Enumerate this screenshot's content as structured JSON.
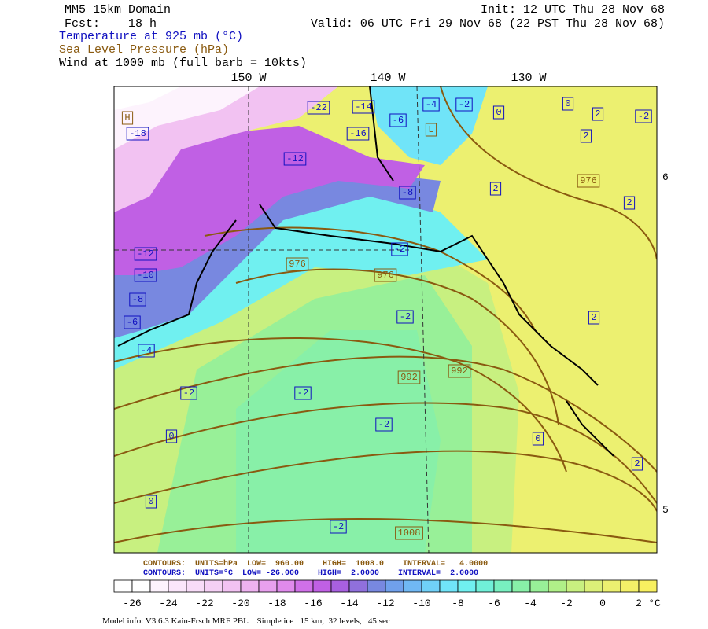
{
  "header": {
    "model": "MM5 15km Domain",
    "init": "Init: 12 UTC Thu 28 Nov 68",
    "fcst": "Fcst:    18 h",
    "valid": "Valid: 06 UTC Fri 29 Nov 68 (22 PST Thu 28 Nov 68)"
  },
  "legend": {
    "temperature": "Temperature at 925 mb (°C)",
    "pressure": "Sea Level Pressure (hPa)",
    "wind": "Wind at 1000 mb (full barb = 10kts)"
  },
  "longitude_labels": [
    "150 W",
    "140 W",
    "130 W"
  ],
  "latitude_labels": [
    "6",
    "5"
  ],
  "map": {
    "temperature_labels": [
      "-22",
      "-14",
      "-4",
      "-2",
      "0",
      "0",
      "2",
      "-2",
      "-6",
      "-16",
      "-18",
      "-12",
      "2",
      "2",
      "2",
      "-8",
      "-12",
      "-10",
      "-8",
      "-6",
      "-4",
      "-2",
      "-2",
      "2",
      "-2",
      "-2",
      "-2",
      "0",
      "0",
      "2",
      "0",
      "-2"
    ],
    "pressure_labels": [
      "976",
      "976",
      "976",
      "992",
      "992",
      "1008"
    ],
    "highs_lows": [
      "H",
      "L"
    ]
  },
  "contour_info": [
    "CONTOURS:  UNITS=hPa  LOW=  960.00    HIGH=  1008.0    INTERVAL=   4.0000",
    "CONTOURS:  UNITS=°C  LOW= -26.000    HIGH=  2.0000    INTERVAL=  2.0000"
  ],
  "colorbar": {
    "ticks": [
      -26,
      -24,
      -22,
      -20,
      -18,
      -16,
      -14,
      -12,
      -10,
      -8,
      -6,
      -4,
      -2,
      0,
      2
    ],
    "unit": "°C",
    "colors": [
      "#ffffff",
      "#ffffff",
      "#fdf3fd",
      "#fbe6fb",
      "#f8dcf8",
      "#f5d0f5",
      "#f2c2f2",
      "#eeb2f0",
      "#e8a0ee",
      "#e08aec",
      "#d070e8",
      "#c060e4",
      "#a860e0",
      "#9070dc",
      "#7888e0",
      "#70a0ec",
      "#70b8f4",
      "#70d0f8",
      "#70e4f8",
      "#70f0f0",
      "#70f0d8",
      "#78f0c0",
      "#88f0a8",
      "#98f098",
      "#b0f088",
      "#c8f080",
      "#dcf078",
      "#ecf070",
      "#f4f068",
      "#f8f060"
    ]
  },
  "footer": "Model info: V3.6.3 Kain-Frsch MRF PBL    Simple ice   15 km,  32 levels,   45 sec"
}
